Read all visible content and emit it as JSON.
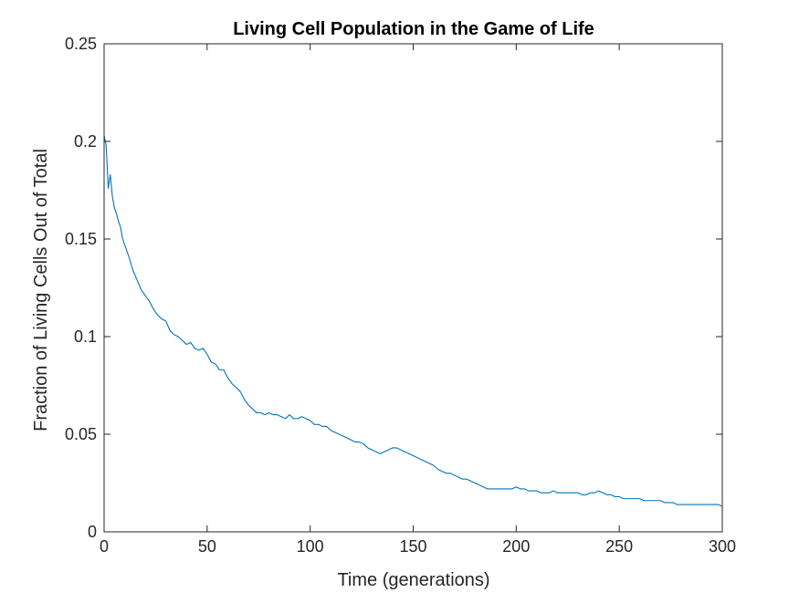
{
  "chart_data": {
    "type": "line",
    "title": "Living Cell Population in the Game of Life",
    "xlabel": "Time (generations)",
    "ylabel": "Fraction of Living Cells Out of Total",
    "xlim": [
      0,
      300
    ],
    "ylim": [
      0,
      0.25
    ],
    "x_ticks": [
      0,
      50,
      100,
      150,
      200,
      250,
      300
    ],
    "y_ticks": [
      0,
      0.05,
      0.1,
      0.15,
      0.2,
      0.25
    ],
    "x_tick_labels": [
      "0",
      "50",
      "100",
      "150",
      "200",
      "250",
      "300"
    ],
    "y_tick_labels": [
      "0",
      "0.05",
      "0.1",
      "0.15",
      "0.2",
      "0.25"
    ],
    "grid": false,
    "legend": "none",
    "series_color": "#0072BD",
    "series": [
      {
        "x": [
          0,
          1,
          2,
          3,
          4,
          5,
          6,
          7,
          8,
          9,
          10,
          12,
          14,
          16,
          18,
          20,
          22,
          24,
          26,
          28,
          30,
          32,
          34,
          36,
          38,
          40,
          42,
          44,
          46,
          48,
          50,
          52,
          54,
          56,
          58,
          60,
          62,
          64,
          66,
          68,
          70,
          72,
          74,
          76,
          78,
          80,
          82,
          84,
          86,
          88,
          90,
          92,
          94,
          96,
          98,
          100,
          102,
          104,
          106,
          108,
          110,
          112,
          114,
          116,
          118,
          120,
          122,
          124,
          126,
          128,
          130,
          132,
          134,
          136,
          138,
          140,
          142,
          144,
          146,
          148,
          150,
          152,
          154,
          156,
          158,
          160,
          162,
          164,
          166,
          168,
          170,
          172,
          174,
          176,
          178,
          180,
          182,
          184,
          186,
          188,
          190,
          192,
          194,
          196,
          198,
          200,
          202,
          204,
          206,
          208,
          210,
          212,
          214,
          216,
          218,
          220,
          222,
          224,
          226,
          228,
          230,
          232,
          234,
          236,
          238,
          240,
          242,
          244,
          246,
          248,
          250,
          252,
          254,
          256,
          258,
          260,
          262,
          264,
          266,
          268,
          270,
          272,
          274,
          276,
          278,
          280,
          282,
          284,
          286,
          288,
          290,
          292,
          294,
          296,
          298,
          300
        ],
        "values": [
          0.203,
          0.198,
          0.176,
          0.183,
          0.172,
          0.166,
          0.163,
          0.159,
          0.156,
          0.15,
          0.147,
          0.141,
          0.134,
          0.129,
          0.124,
          0.121,
          0.118,
          0.114,
          0.111,
          0.109,
          0.108,
          0.103,
          0.101,
          0.1,
          0.098,
          0.096,
          0.097,
          0.094,
          0.093,
          0.094,
          0.091,
          0.087,
          0.086,
          0.083,
          0.083,
          0.079,
          0.076,
          0.074,
          0.072,
          0.068,
          0.065,
          0.063,
          0.061,
          0.061,
          0.06,
          0.061,
          0.06,
          0.06,
          0.059,
          0.058,
          0.06,
          0.058,
          0.058,
          0.059,
          0.058,
          0.057,
          0.055,
          0.055,
          0.054,
          0.054,
          0.052,
          0.051,
          0.05,
          0.049,
          0.048,
          0.047,
          0.046,
          0.046,
          0.045,
          0.043,
          0.042,
          0.041,
          0.04,
          0.041,
          0.042,
          0.043,
          0.043,
          0.042,
          0.041,
          0.04,
          0.039,
          0.038,
          0.037,
          0.036,
          0.035,
          0.034,
          0.032,
          0.031,
          0.03,
          0.03,
          0.029,
          0.028,
          0.027,
          0.027,
          0.026,
          0.025,
          0.024,
          0.023,
          0.022,
          0.022,
          0.022,
          0.022,
          0.022,
          0.022,
          0.022,
          0.023,
          0.022,
          0.022,
          0.021,
          0.021,
          0.021,
          0.02,
          0.02,
          0.02,
          0.021,
          0.02,
          0.02,
          0.02,
          0.02,
          0.02,
          0.02,
          0.019,
          0.019,
          0.02,
          0.02,
          0.021,
          0.02,
          0.019,
          0.019,
          0.018,
          0.018,
          0.017,
          0.017,
          0.017,
          0.017,
          0.017,
          0.016,
          0.016,
          0.016,
          0.016,
          0.016,
          0.015,
          0.015,
          0.015,
          0.014,
          0.014,
          0.014,
          0.014,
          0.014,
          0.014,
          0.014,
          0.014,
          0.014,
          0.014,
          0.014,
          0.013
        ]
      }
    ]
  }
}
